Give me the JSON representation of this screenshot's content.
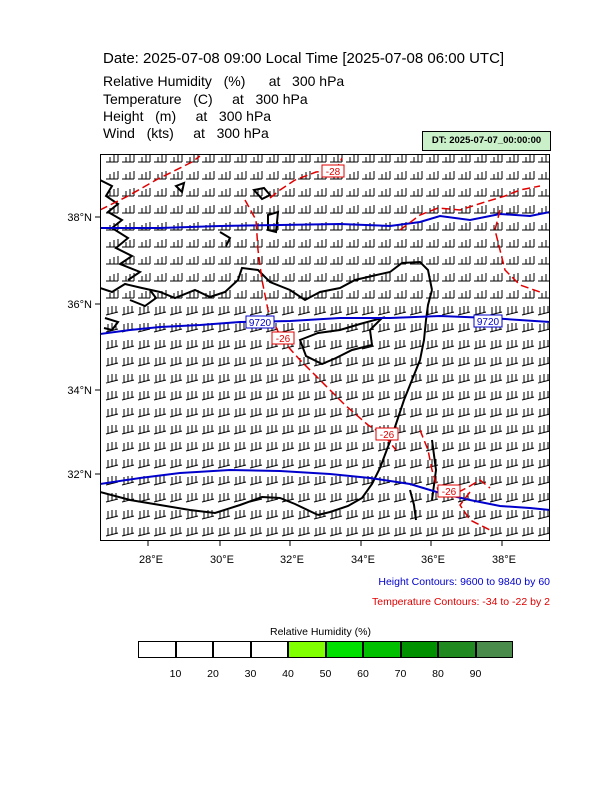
{
  "header": {
    "title": "Date: 2025-07-08  09:00 Local Time [2025-07-08  06:00 UTC]",
    "variables": [
      "Relative Humidity   (%)      at   300 hPa",
      "Temperature   (C)     at   300 hPa",
      "Height   (m)     at   300 hPa",
      "Wind   (kts)     at   300 hPa"
    ],
    "dt_badge": "DT: 2025-07-07_00:00:00"
  },
  "map": {
    "lat_labels": [
      "38°N",
      "36°N",
      "34°N",
      "32°N"
    ],
    "lon_labels": [
      "28°E",
      "30°E",
      "32°E",
      "34°E",
      "36°E",
      "38°E"
    ],
    "height_contour_labels": [
      "9720",
      "9720"
    ],
    "temperature_contour_labels": [
      "-28",
      "-26",
      "-26",
      "-26"
    ],
    "colors": {
      "height": "#0000cc",
      "temperature": "#e00000",
      "wind": "#000000"
    }
  },
  "notes": {
    "height": "Height Contours: 9600 to 9840 by 60",
    "temperature": "Temperature Contours: -34 to -22 by 2"
  },
  "legend": {
    "title": "Relative Humidity  (%)",
    "values": [
      "10",
      "20",
      "30",
      "40",
      "50",
      "60",
      "70",
      "80",
      "90"
    ],
    "colors": [
      "#ffffff",
      "#ffffff",
      "#ffffff",
      "#ffffff",
      "#80ff00",
      "#00e000",
      "#00c000",
      "#009000",
      "#208a20",
      "#4a8a4a"
    ]
  }
}
